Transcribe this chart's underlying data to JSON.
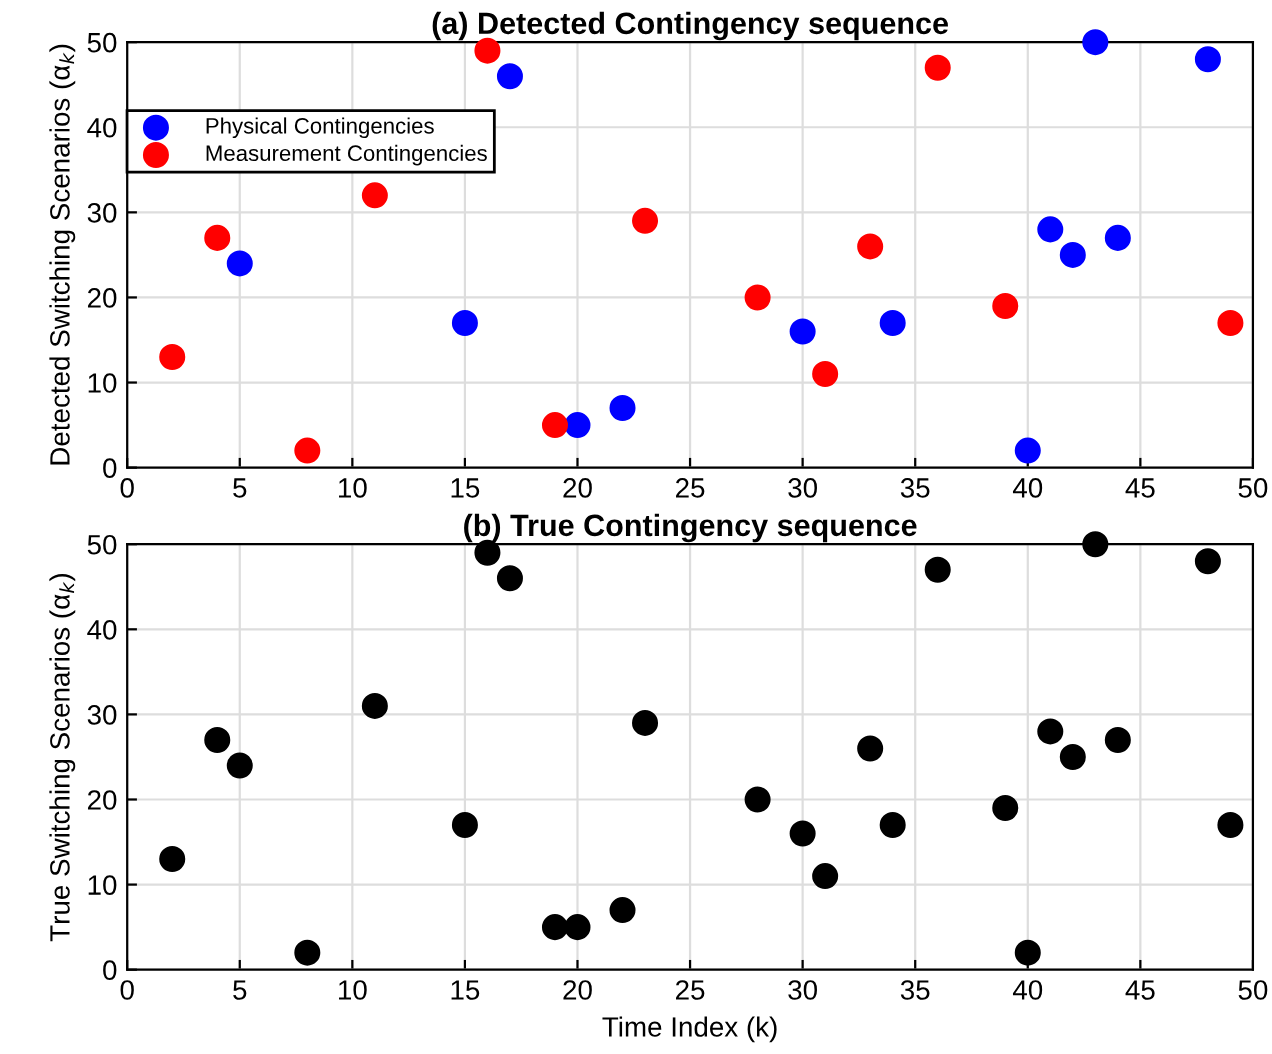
{
  "chart_data": [
    {
      "type": "scatter",
      "title": "(a) Detected Contingency sequence",
      "ylabel": "Detected Switching Scenarios (α$_{k}$)",
      "xlim": [
        0,
        50
      ],
      "xticks": [
        0,
        5,
        10,
        15,
        20,
        25,
        30,
        35,
        40,
        45,
        50
      ],
      "ylim": [
        0,
        50
      ],
      "yticks": [
        0,
        10,
        20,
        30,
        40,
        50
      ],
      "grid": true,
      "legend": "top left",
      "marker": "circle",
      "series": [
        {
          "name": "Physical Contingencies",
          "color": "#0000ff",
          "x": [
            5,
            15,
            17,
            20,
            22,
            30,
            34,
            40,
            41,
            42,
            43,
            44,
            48
          ],
          "values": [
            24,
            17,
            46,
            5,
            7,
            16,
            17,
            2,
            28,
            25,
            50,
            27,
            48
          ]
        },
        {
          "name": "Measurement Contingencies",
          "color": "#ff0000",
          "x": [
            2,
            4,
            8,
            11,
            16,
            19,
            23,
            28,
            31,
            33,
            36,
            39,
            49
          ],
          "values": [
            13,
            27,
            2,
            32,
            49,
            5,
            29,
            20,
            11,
            26,
            47,
            19,
            17
          ]
        }
      ]
    },
    {
      "type": "scatter",
      "title": "(b) True Contingency sequence",
      "xlabel": "Time Index (k)",
      "ylabel": "True Switching Scenarios (α$_{k}$)",
      "xlim": [
        0,
        50
      ],
      "xticks": [
        0,
        5,
        10,
        15,
        20,
        25,
        30,
        35,
        40,
        45,
        50
      ],
      "ylim": [
        0,
        50
      ],
      "yticks": [
        0,
        10,
        20,
        30,
        40,
        50
      ],
      "grid": true,
      "marker": "circle",
      "series": [
        {
          "color": "#000000",
          "x": [
            2,
            4,
            5,
            8,
            11,
            15,
            16,
            17,
            19,
            20,
            22,
            23,
            28,
            30,
            31,
            33,
            34,
            36,
            39,
            40,
            41,
            42,
            43,
            44,
            48,
            49
          ],
          "values": [
            13,
            27,
            24,
            2,
            31,
            17,
            49,
            46,
            5,
            5,
            7,
            29,
            20,
            16,
            11,
            26,
            17,
            47,
            19,
            2,
            28,
            25,
            50,
            27,
            48,
            17
          ]
        }
      ]
    }
  ]
}
